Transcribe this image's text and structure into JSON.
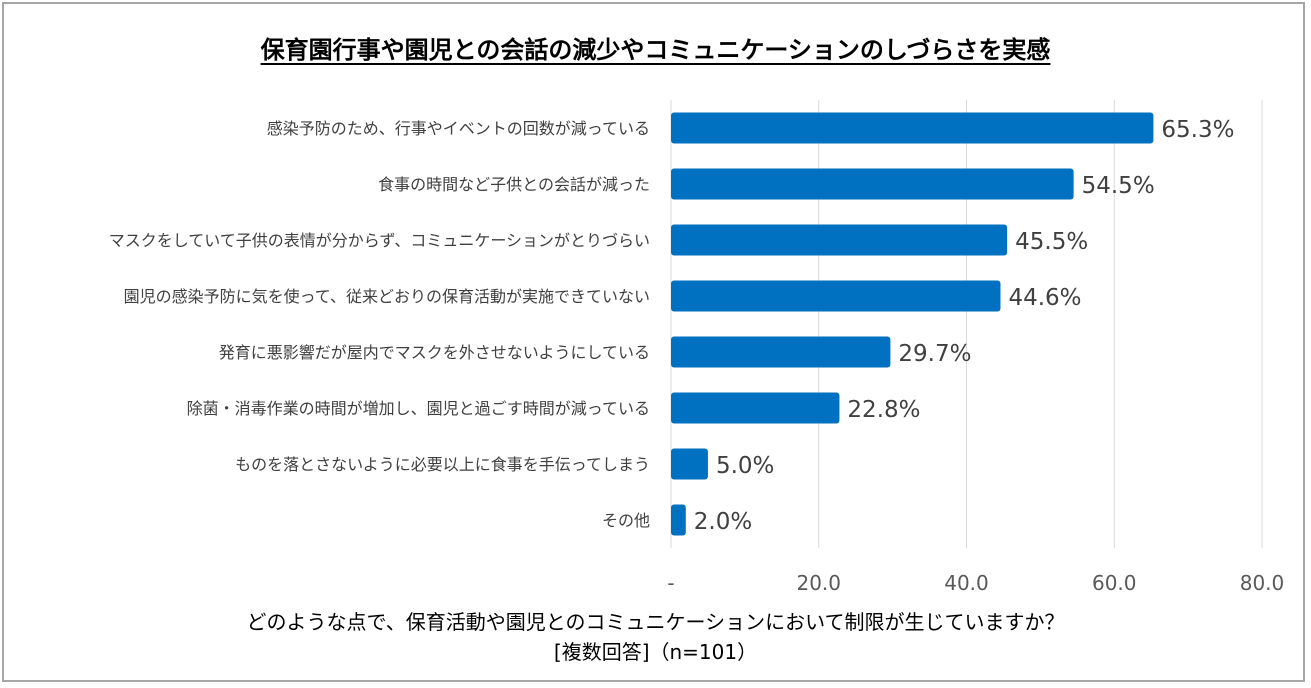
{
  "chart_data": {
    "type": "bar",
    "orientation": "horizontal",
    "title": "保育園行事や園児との会話の減少やコミュニケーションのしづらさを実感",
    "categories": [
      "感染予防のため、行事やイベントの回数が減っている",
      "食事の時間など子供との会話が減った",
      "マスクをしていて子供の表情が分からず、コミュニケーションがとりづらい",
      "園児の感染予防に気を使って、従来どおりの保育活動が実施できていない",
      "発育に悪影響だが屋内でマスクを外させないようにしている",
      "除菌・消毒作業の時間が増加し、園児と過ごす時間が減っている",
      "ものを落とさないように必要以上に食事を手伝ってしまう",
      "その他"
    ],
    "values": [
      65.3,
      54.5,
      45.5,
      44.6,
      29.7,
      22.8,
      5.0,
      2.0
    ],
    "value_labels": [
      "65.3%",
      "54.5%",
      "45.5%",
      "44.6%",
      "29.7%",
      "22.8%",
      "5.0%",
      "2.0%"
    ],
    "xlim": [
      0,
      80
    ],
    "xticks": [
      0,
      20,
      40,
      60,
      80
    ],
    "xtick_labels": [
      "-",
      "20.0",
      "40.0",
      "60.0",
      "80.0"
    ],
    "grid": true,
    "bar_color": "#0070c0",
    "xlabel_line1": "どのような点で、保育活動や園児とのコミュニケーションにおいて制限が生じていますか？",
    "xlabel_line2": "[複数回答]（n=101）"
  }
}
